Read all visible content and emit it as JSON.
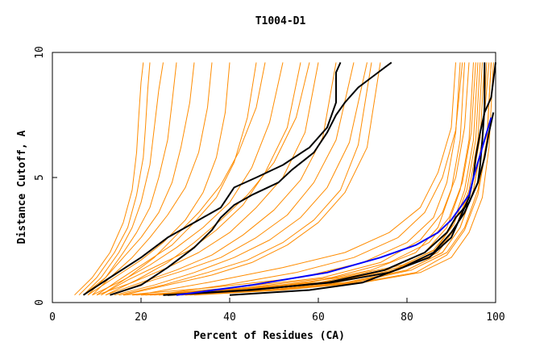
{
  "chart_data": {
    "type": "line",
    "title": "T1004-D1",
    "xlabel": "Percent of Residues (CA)",
    "ylabel": "Distance Cutoff, A",
    "xlim": [
      0,
      100
    ],
    "ylim": [
      0,
      10
    ],
    "x_ticks": [
      0,
      20,
      40,
      60,
      80,
      100
    ],
    "y_ticks": [
      0,
      5,
      10
    ],
    "x_tick_labels": [
      "0",
      "20",
      "40",
      "60",
      "80",
      "100"
    ],
    "y_tick_labels": [
      "0",
      "5",
      "10"
    ],
    "grid": false,
    "legend": "none",
    "colors": {
      "background_models": "#FF8C00",
      "highlight_black": "#000000",
      "highlight_blue": "#0000FF"
    },
    "background_series_note": "many orange model curves forming two bundles (poor models on the left, good models on the right)",
    "orange_left_bundle": [
      {
        "x": [
          5,
          9,
          13,
          16,
          18,
          19,
          19.5,
          20,
          20.5
        ],
        "y": [
          0.3,
          1.0,
          2.0,
          3.2,
          4.5,
          6.0,
          7.5,
          8.8,
          9.6
        ]
      },
      {
        "x": [
          6,
          10,
          14,
          17,
          19,
          20.5,
          21,
          21.5,
          22
        ],
        "y": [
          0.3,
          1.0,
          2.0,
          3.0,
          4.3,
          5.8,
          7.0,
          8.5,
          9.6
        ]
      },
      {
        "x": [
          7,
          11,
          15,
          18,
          20,
          22,
          23,
          24,
          25
        ],
        "y": [
          0.3,
          1.0,
          2.0,
          3.0,
          4.0,
          5.5,
          7.0,
          8.5,
          9.6
        ]
      },
      {
        "x": [
          8,
          12,
          16,
          19,
          22,
          24,
          26,
          27,
          28
        ],
        "y": [
          0.3,
          1.0,
          2.0,
          2.8,
          3.8,
          5.0,
          6.5,
          8.0,
          9.6
        ]
      },
      {
        "x": [
          7,
          12,
          16,
          20,
          24,
          27,
          29,
          31,
          32
        ],
        "y": [
          0.3,
          1.0,
          1.8,
          2.6,
          3.6,
          4.8,
          6.2,
          8.0,
          9.6
        ]
      },
      {
        "x": [
          9,
          13,
          18,
          22,
          26,
          30,
          33,
          35,
          36
        ],
        "y": [
          0.3,
          1.0,
          1.8,
          2.6,
          3.5,
          4.6,
          6.0,
          7.8,
          9.6
        ]
      },
      {
        "x": [
          8,
          14,
          20,
          25,
          30,
          34,
          37,
          39,
          40
        ],
        "y": [
          0.3,
          1.0,
          1.7,
          2.4,
          3.3,
          4.4,
          5.8,
          7.6,
          9.6
        ]
      },
      {
        "x": [
          10,
          15,
          21,
          27,
          32,
          37,
          41,
          44,
          46
        ],
        "y": [
          0.3,
          0.9,
          1.6,
          2.3,
          3.2,
          4.2,
          5.6,
          7.4,
          9.6
        ]
      },
      {
        "x": [
          9,
          16,
          22,
          28,
          34,
          40,
          45,
          49,
          52
        ],
        "y": [
          0.3,
          0.9,
          1.5,
          2.2,
          3.0,
          4.0,
          5.4,
          7.2,
          9.6
        ]
      },
      {
        "x": [
          11,
          17,
          24,
          31,
          37,
          43,
          48,
          53,
          56
        ],
        "y": [
          0.3,
          0.9,
          1.5,
          2.1,
          2.9,
          3.9,
          5.2,
          7.0,
          9.6
        ]
      },
      {
        "x": [
          10,
          18,
          26,
          33,
          40,
          46,
          52,
          57,
          60
        ],
        "y": [
          0.3,
          0.8,
          1.4,
          2.0,
          2.8,
          3.8,
          5.0,
          6.8,
          9.6
        ]
      },
      {
        "x": [
          12,
          20,
          28,
          36,
          43,
          50,
          56,
          61,
          64
        ],
        "y": [
          0.3,
          0.8,
          1.3,
          1.9,
          2.7,
          3.7,
          4.9,
          6.6,
          9.6
        ]
      },
      {
        "x": [
          13,
          21,
          30,
          38,
          46,
          53,
          59,
          64,
          68
        ],
        "y": [
          0.3,
          0.8,
          1.3,
          1.8,
          2.6,
          3.5,
          4.8,
          6.5,
          9.6
        ]
      },
      {
        "x": [
          14,
          23,
          32,
          41,
          49,
          56,
          62,
          67,
          71
        ],
        "y": [
          0.3,
          0.7,
          1.2,
          1.8,
          2.5,
          3.4,
          4.6,
          6.4,
          9.6
        ]
      },
      {
        "x": [
          15,
          25,
          35,
          44,
          52,
          59,
          65,
          69,
          72
        ],
        "y": [
          0.3,
          0.7,
          1.2,
          1.7,
          2.4,
          3.3,
          4.5,
          6.3,
          9.6
        ]
      },
      {
        "x": [
          12,
          19,
          26,
          32,
          38,
          44,
          50,
          55,
          58
        ],
        "y": [
          0.3,
          0.9,
          1.6,
          2.4,
          3.3,
          4.3,
          5.6,
          7.4,
          9.6
        ]
      },
      {
        "x": [
          11,
          17,
          23,
          28,
          33,
          38,
          42,
          46,
          48
        ],
        "y": [
          0.3,
          1.0,
          1.8,
          2.7,
          3.6,
          4.7,
          6.0,
          7.8,
          9.6
        ]
      },
      {
        "x": [
          16,
          26,
          36,
          45,
          53,
          60,
          66,
          71,
          74
        ],
        "y": [
          0.3,
          0.7,
          1.1,
          1.6,
          2.3,
          3.2,
          4.4,
          6.2,
          9.6
        ]
      }
    ],
    "orange_right_bundle": [
      {
        "x": [
          20,
          40,
          60,
          75,
          84,
          89,
          92,
          94,
          95
        ],
        "y": [
          0.3,
          0.5,
          0.8,
          1.3,
          2.0,
          3.0,
          4.5,
          6.5,
          9.6
        ]
      },
      {
        "x": [
          22,
          42,
          62,
          77,
          86,
          90,
          93,
          95,
          96
        ],
        "y": [
          0.3,
          0.5,
          0.8,
          1.3,
          2.0,
          3.0,
          4.5,
          6.5,
          9.6
        ]
      },
      {
        "x": [
          25,
          45,
          64,
          78,
          87,
          91,
          94,
          96,
          97
        ],
        "y": [
          0.3,
          0.5,
          0.8,
          1.3,
          2.0,
          3.0,
          4.5,
          6.5,
          9.6
        ]
      },
      {
        "x": [
          28,
          48,
          66,
          80,
          88,
          92,
          95,
          97,
          98
        ],
        "y": [
          0.3,
          0.5,
          0.8,
          1.3,
          2.0,
          3.0,
          4.5,
          6.5,
          9.6
        ]
      },
      {
        "x": [
          18,
          38,
          58,
          72,
          82,
          87,
          90,
          92,
          93
        ],
        "y": [
          0.3,
          0.5,
          0.8,
          1.3,
          2.0,
          3.0,
          4.5,
          6.5,
          9.6
        ]
      },
      {
        "x": [
          30,
          50,
          68,
          81,
          89,
          93,
          96,
          98,
          99
        ],
        "y": [
          0.3,
          0.5,
          0.8,
          1.3,
          2.0,
          3.0,
          4.5,
          6.5,
          9.6
        ]
      },
      {
        "x": [
          24,
          44,
          63,
          76,
          85,
          89.5,
          92.5,
          94.5,
          95.5
        ],
        "y": [
          0.3,
          0.6,
          1.0,
          1.6,
          2.4,
          3.4,
          4.8,
          6.8,
          9.6
        ]
      },
      {
        "x": [
          26,
          47,
          65,
          79,
          87.5,
          91.5,
          94.5,
          96.5,
          97.5
        ],
        "y": [
          0.3,
          0.6,
          1.0,
          1.5,
          2.2,
          3.2,
          4.6,
          6.6,
          9.6
        ]
      },
      {
        "x": [
          16,
          36,
          56,
          70,
          80,
          86,
          89,
          91,
          92
        ],
        "y": [
          0.3,
          0.6,
          1.0,
          1.6,
          2.4,
          3.4,
          4.8,
          6.8,
          9.6
        ]
      },
      {
        "x": [
          32,
          52,
          70,
          83,
          90,
          94,
          97,
          98.5,
          99.5
        ],
        "y": [
          0.3,
          0.5,
          0.8,
          1.2,
          1.8,
          2.8,
          4.2,
          6.2,
          9.6
        ]
      },
      {
        "x": [
          21,
          41,
          61,
          74,
          83,
          88,
          91,
          93,
          94
        ],
        "y": [
          0.3,
          0.6,
          1.0,
          1.6,
          2.5,
          3.6,
          5.0,
          7.0,
          9.6
        ]
      },
      {
        "x": [
          27,
          46,
          65,
          78,
          86,
          90.5,
          93.5,
          95.5,
          96.5
        ],
        "y": [
          0.3,
          0.5,
          0.9,
          1.4,
          2.1,
          3.1,
          4.5,
          6.5,
          9.6
        ]
      },
      {
        "x": [
          19,
          35,
          52,
          66,
          76,
          83,
          87,
          90,
          91
        ],
        "y": [
          0.3,
          0.8,
          1.4,
          2.0,
          2.8,
          3.8,
          5.2,
          7.0,
          9.6
        ]
      },
      {
        "x": [
          23,
          39,
          55,
          68,
          78,
          84,
          88,
          91,
          92.5
        ],
        "y": [
          0.3,
          0.7,
          1.2,
          1.8,
          2.6,
          3.6,
          5.0,
          6.9,
          9.6
        ]
      },
      {
        "x": [
          29,
          49,
          67,
          80,
          88,
          92,
          95,
          97,
          98.5
        ],
        "y": [
          0.3,
          0.5,
          0.8,
          1.3,
          2.0,
          3.0,
          4.5,
          6.5,
          9.6
        ]
      },
      {
        "x": [
          31,
          51,
          69,
          82,
          89,
          93,
          96,
          98,
          99
        ],
        "y": [
          0.3,
          0.5,
          0.8,
          1.2,
          1.9,
          2.9,
          4.3,
          6.3,
          9.6
        ]
      }
    ],
    "highlight_series": [
      {
        "name": "black-left-1",
        "color": "#000000",
        "x": [
          7,
          13,
          20,
          26,
          33,
          38,
          41,
          46,
          52,
          58,
          62,
          64,
          64,
          64,
          65
        ],
        "y": [
          0.3,
          1.0,
          1.8,
          2.6,
          3.3,
          3.8,
          4.6,
          5.0,
          5.5,
          6.2,
          7.0,
          8.0,
          8.7,
          9.2,
          9.6
        ]
      },
      {
        "name": "black-left-2",
        "color": "#000000",
        "x": [
          13,
          20,
          26,
          32,
          36,
          38,
          41,
          45,
          51,
          54,
          59,
          62,
          64,
          66,
          69,
          72,
          75,
          76.5
        ],
        "y": [
          0.3,
          0.7,
          1.4,
          2.2,
          2.9,
          3.4,
          3.9,
          4.3,
          4.8,
          5.3,
          6.0,
          6.8,
          7.5,
          8.0,
          8.6,
          9.0,
          9.4,
          9.6
        ]
      },
      {
        "name": "black-right-1",
        "color": "#000000",
        "x": [
          26,
          45,
          62,
          75,
          84,
          89,
          91,
          94,
          96,
          96.5,
          97,
          97.5,
          97.5
        ],
        "y": [
          0.3,
          0.5,
          0.8,
          1.3,
          2.0,
          2.8,
          3.4,
          4.0,
          4.8,
          5.5,
          6.5,
          7.8,
          9.6
        ]
      },
      {
        "name": "black-right-2",
        "color": "#000000",
        "x": [
          25,
          44,
          63,
          76,
          85,
          90,
          92,
          94,
          95,
          95.5,
          96.5,
          97.5,
          99,
          100
        ],
        "y": [
          0.3,
          0.5,
          0.8,
          1.2,
          1.8,
          2.6,
          3.4,
          4.2,
          5.0,
          5.8,
          6.8,
          7.6,
          8.2,
          9.6
        ]
      },
      {
        "name": "black-right-3",
        "color": "#000000",
        "x": [
          40,
          58,
          70,
          79,
          86,
          90,
          93,
          96,
          97.5,
          98.5,
          99.5
        ],
        "y": [
          0.3,
          0.5,
          0.8,
          1.4,
          2.0,
          2.8,
          3.6,
          4.8,
          5.8,
          6.8,
          7.6
        ]
      },
      {
        "name": "blue-best",
        "color": "#0000FF",
        "x": [
          28,
          45,
          62,
          74,
          82,
          87,
          90,
          92,
          94,
          95,
          96,
          97,
          98,
          99
        ],
        "y": [
          0.3,
          0.7,
          1.2,
          1.8,
          2.3,
          2.8,
          3.3,
          3.8,
          4.3,
          5.0,
          5.6,
          6.2,
          6.8,
          7.4
        ]
      }
    ]
  }
}
